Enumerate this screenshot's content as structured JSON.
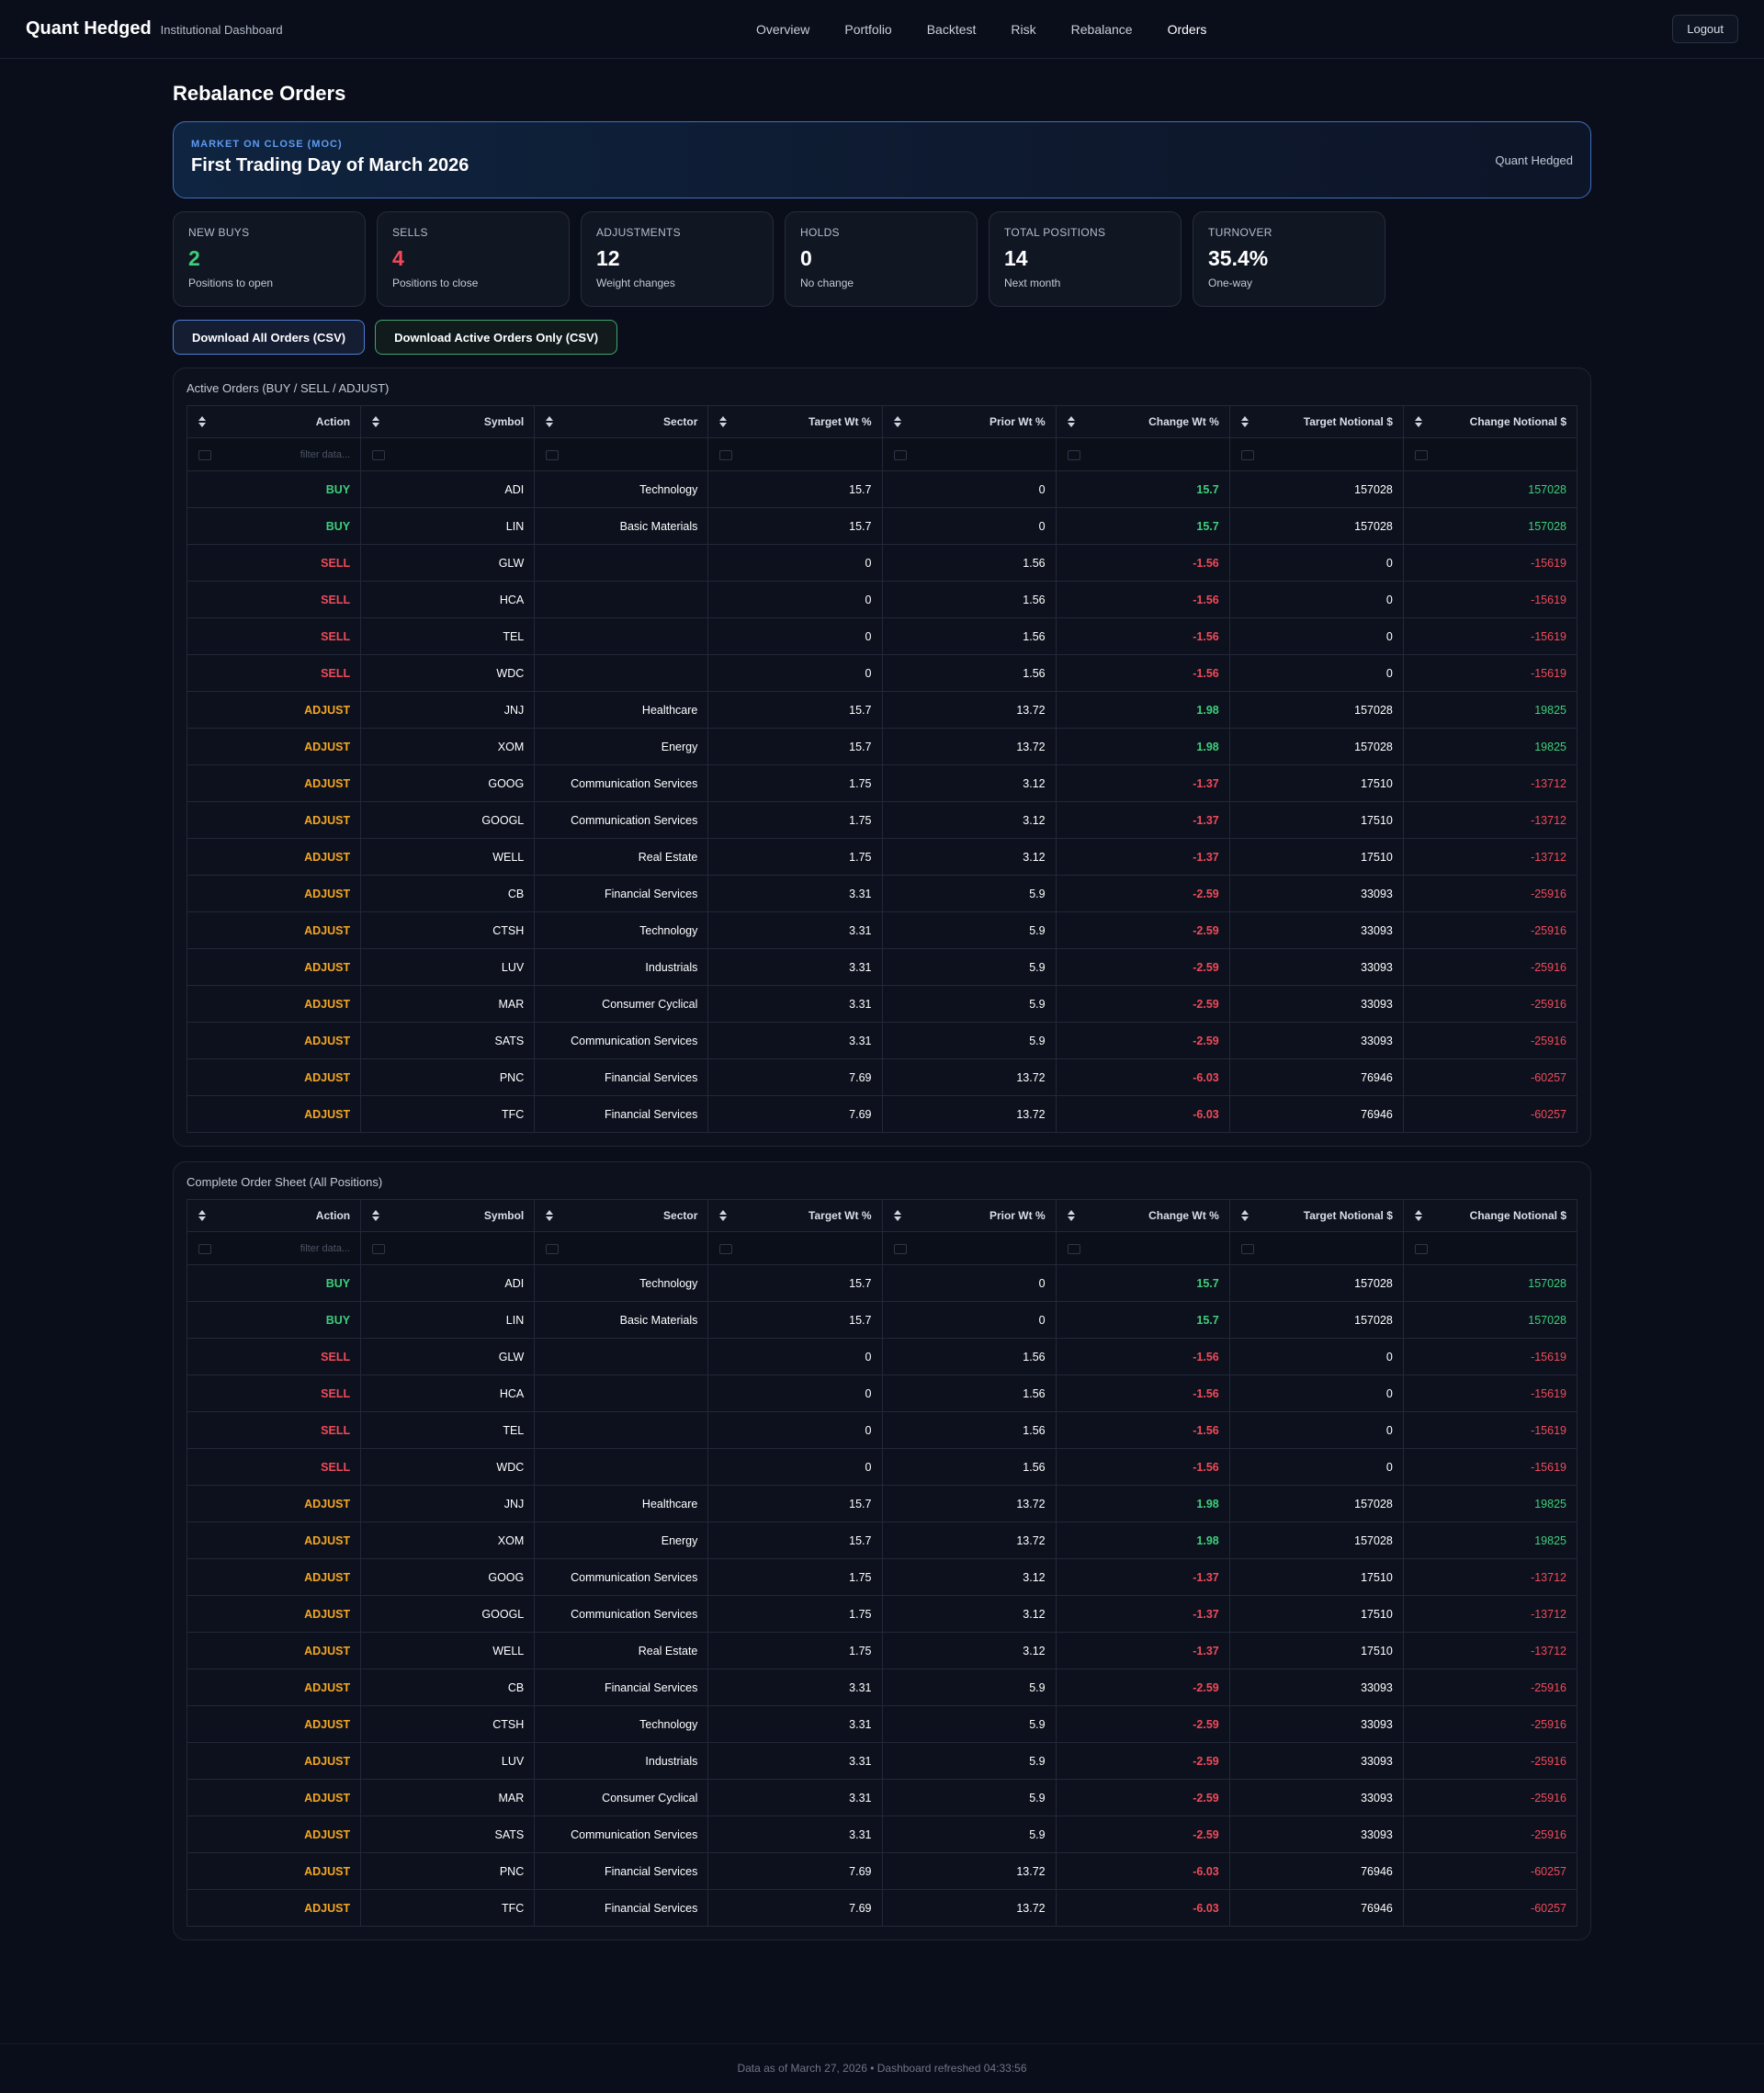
{
  "header": {
    "brand": "Quant Hedged",
    "subtitle": "Institutional Dashboard",
    "nav": [
      "Overview",
      "Portfolio",
      "Backtest",
      "Risk",
      "Rebalance",
      "Orders"
    ],
    "active_nav": "Orders",
    "logout_label": "Logout"
  },
  "page": {
    "title": "Rebalance Orders"
  },
  "banner": {
    "kicker": "MARKET ON CLOSE (MOC)",
    "title": "First Trading Day of March 2026",
    "right": "Quant Hedged"
  },
  "stats": [
    {
      "label": "NEW BUYS",
      "value": "2",
      "sub": "Positions to open",
      "tone": "green"
    },
    {
      "label": "SELLS",
      "value": "4",
      "sub": "Positions to close",
      "tone": "red"
    },
    {
      "label": "ADJUSTMENTS",
      "value": "12",
      "sub": "Weight changes",
      "tone": ""
    },
    {
      "label": "HOLDS",
      "value": "0",
      "sub": "No change",
      "tone": ""
    },
    {
      "label": "TOTAL POSITIONS",
      "value": "14",
      "sub": "Next month",
      "tone": ""
    },
    {
      "label": "TURNOVER",
      "value": "35.4%",
      "sub": "One-way",
      "tone": ""
    }
  ],
  "buttons": {
    "download_all": "Download All Orders (CSV)",
    "download_active": "Download Active Orders Only (CSV)"
  },
  "colors": {
    "buy": "#3ecf7a",
    "sell": "#f04a5a",
    "adjust": "#f5a623",
    "accent": "#5d9bf2"
  },
  "table_columns": [
    "Action",
    "Symbol",
    "Sector",
    "Target Wt %",
    "Prior Wt %",
    "Change Wt %",
    "Target Notional $",
    "Change Notional $"
  ],
  "filter_placeholder": "filter data...",
  "tables": [
    {
      "title": "Active Orders (BUY / SELL / ADJUST)"
    },
    {
      "title": "Complete Order Sheet (All Positions)"
    }
  ],
  "orders": [
    [
      "BUY",
      "ADI",
      "Technology",
      "15.7",
      "0",
      "15.7",
      "157028",
      "157028"
    ],
    [
      "BUY",
      "LIN",
      "Basic Materials",
      "15.7",
      "0",
      "15.7",
      "157028",
      "157028"
    ],
    [
      "SELL",
      "GLW",
      "",
      "0",
      "1.56",
      "-1.56",
      "0",
      "-15619"
    ],
    [
      "SELL",
      "HCA",
      "",
      "0",
      "1.56",
      "-1.56",
      "0",
      "-15619"
    ],
    [
      "SELL",
      "TEL",
      "",
      "0",
      "1.56",
      "-1.56",
      "0",
      "-15619"
    ],
    [
      "SELL",
      "WDC",
      "",
      "0",
      "1.56",
      "-1.56",
      "0",
      "-15619"
    ],
    [
      "ADJUST",
      "JNJ",
      "Healthcare",
      "15.7",
      "13.72",
      "1.98",
      "157028",
      "19825"
    ],
    [
      "ADJUST",
      "XOM",
      "Energy",
      "15.7",
      "13.72",
      "1.98",
      "157028",
      "19825"
    ],
    [
      "ADJUST",
      "GOOG",
      "Communication Services",
      "1.75",
      "3.12",
      "-1.37",
      "17510",
      "-13712"
    ],
    [
      "ADJUST",
      "GOOGL",
      "Communication Services",
      "1.75",
      "3.12",
      "-1.37",
      "17510",
      "-13712"
    ],
    [
      "ADJUST",
      "WELL",
      "Real Estate",
      "1.75",
      "3.12",
      "-1.37",
      "17510",
      "-13712"
    ],
    [
      "ADJUST",
      "CB",
      "Financial Services",
      "3.31",
      "5.9",
      "-2.59",
      "33093",
      "-25916"
    ],
    [
      "ADJUST",
      "CTSH",
      "Technology",
      "3.31",
      "5.9",
      "-2.59",
      "33093",
      "-25916"
    ],
    [
      "ADJUST",
      "LUV",
      "Industrials",
      "3.31",
      "5.9",
      "-2.59",
      "33093",
      "-25916"
    ],
    [
      "ADJUST",
      "MAR",
      "Consumer Cyclical",
      "3.31",
      "5.9",
      "-2.59",
      "33093",
      "-25916"
    ],
    [
      "ADJUST",
      "SATS",
      "Communication Services",
      "3.31",
      "5.9",
      "-2.59",
      "33093",
      "-25916"
    ],
    [
      "ADJUST",
      "PNC",
      "Financial Services",
      "7.69",
      "13.72",
      "-6.03",
      "76946",
      "-60257"
    ],
    [
      "ADJUST",
      "TFC",
      "Financial Services",
      "7.69",
      "13.72",
      "-6.03",
      "76946",
      "-60257"
    ]
  ],
  "footer": {
    "text": "Data as of March 27, 2026 • Dashboard refreshed 04:33:56"
  }
}
